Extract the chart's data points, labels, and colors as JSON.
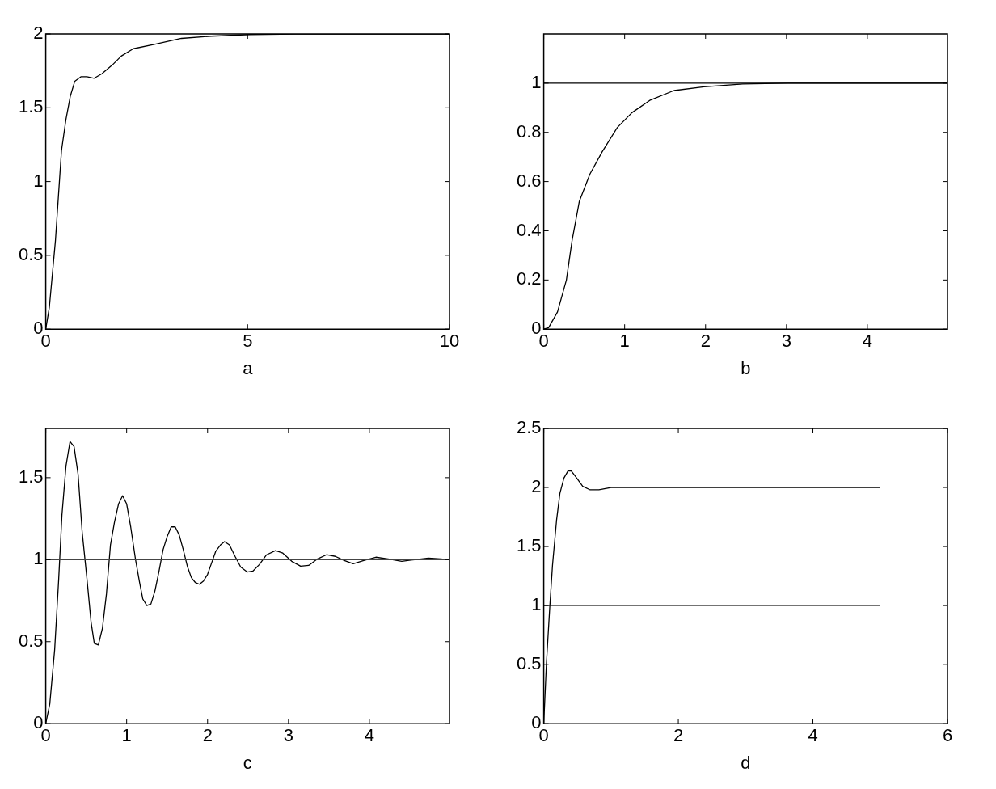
{
  "chart_data": [
    {
      "type": "line",
      "xlabel": "a",
      "xlim": [
        0,
        10
      ],
      "ylim": [
        0,
        2
      ],
      "xticks": [
        0,
        5,
        10
      ],
      "yticks": [
        0,
        0.5,
        1,
        1.5,
        2
      ],
      "series": [
        {
          "color": "#000000",
          "x": [
            0,
            0.09,
            0.24,
            0.39,
            0.5,
            0.61,
            0.72,
            0.87,
            1.02,
            1.2,
            1.39,
            1.65,
            1.87,
            2.17,
            2.69,
            3.36,
            4.1,
            5.06,
            6.2,
            10
          ],
          "values": [
            0,
            0.15,
            0.6,
            1.21,
            1.42,
            1.58,
            1.68,
            1.71,
            1.71,
            1.7,
            1.73,
            1.79,
            1.85,
            1.9,
            1.93,
            1.97,
            1.985,
            1.996,
            2,
            2
          ]
        }
      ]
    },
    {
      "type": "line",
      "xlabel": "b",
      "xlim": [
        0,
        4.99
      ],
      "ylim": [
        0,
        1.2
      ],
      "xticks": [
        0,
        1,
        2,
        3,
        4
      ],
      "yticks": [
        0,
        0.2,
        0.4,
        0.6,
        0.8,
        1
      ],
      "ref_lines": [
        {
          "axis": "y",
          "value": 1,
          "color": "#000000"
        }
      ],
      "series": [
        {
          "color": "#000000",
          "x": [
            0,
            0.06,
            0.17,
            0.28,
            0.35,
            0.44,
            0.57,
            0.72,
            0.91,
            1.09,
            1.31,
            1.61,
            1.98,
            2.46,
            3.02,
            4.99
          ],
          "values": [
            0,
            0.006,
            0.07,
            0.2,
            0.36,
            0.52,
            0.63,
            0.72,
            0.82,
            0.88,
            0.93,
            0.97,
            0.985,
            0.997,
            1,
            1
          ]
        }
      ]
    },
    {
      "type": "line",
      "xlabel": "c",
      "xlim": [
        0,
        4.99
      ],
      "ylim": [
        0,
        1.8
      ],
      "xticks": [
        0,
        1,
        2,
        3,
        4
      ],
      "yticks": [
        0,
        0.5,
        1,
        1.5
      ],
      "ref_lines": [
        {
          "axis": "y",
          "value": 1,
          "color": "#444444"
        }
      ],
      "series": [
        {
          "color": "#000000",
          "x": [
            0,
            0.05,
            0.11,
            0.16,
            0.2,
            0.25,
            0.3,
            0.35,
            0.4,
            0.45,
            0.51,
            0.56,
            0.6,
            0.65,
            0.7,
            0.75,
            0.8,
            0.85,
            0.9,
            0.95,
            1.0,
            1.05,
            1.11,
            1.16,
            1.2,
            1.25,
            1.3,
            1.35,
            1.4,
            1.45,
            1.5,
            1.55,
            1.6,
            1.65,
            1.7,
            1.75,
            1.8,
            1.85,
            1.9,
            1.95,
            2.0,
            2.05,
            2.1,
            2.16,
            2.21,
            2.27,
            2.34,
            2.41,
            2.49,
            2.56,
            2.64,
            2.73,
            2.84,
            2.93,
            3.04,
            3.15,
            3.25,
            3.36,
            3.47,
            3.58,
            3.69,
            3.8,
            3.93,
            4.08,
            4.23,
            4.4,
            4.56,
            4.73,
            4.88,
            4.99
          ],
          "values": [
            0,
            0.12,
            0.45,
            0.88,
            1.27,
            1.57,
            1.72,
            1.69,
            1.52,
            1.17,
            0.88,
            0.62,
            0.49,
            0.48,
            0.58,
            0.79,
            1.09,
            1.23,
            1.34,
            1.39,
            1.34,
            1.2,
            1.0,
            0.86,
            0.76,
            0.72,
            0.73,
            0.81,
            0.93,
            1.06,
            1.14,
            1.2,
            1.2,
            1.15,
            1.06,
            0.96,
            0.89,
            0.86,
            0.85,
            0.87,
            0.91,
            0.98,
            1.05,
            1.09,
            1.11,
            1.09,
            1.02,
            0.955,
            0.925,
            0.93,
            0.97,
            1.03,
            1.055,
            1.04,
            0.99,
            0.96,
            0.965,
            1.005,
            1.03,
            1.02,
            0.995,
            0.975,
            0.995,
            1.015,
            1.005,
            0.99,
            1.0,
            1.01,
            1.005,
            1.0
          ]
        }
      ]
    },
    {
      "type": "line",
      "xlabel": "d",
      "xlim": [
        0,
        6
      ],
      "ylim": [
        0,
        2.5
      ],
      "xticks": [
        0,
        2,
        4,
        6
      ],
      "yticks": [
        0,
        0.5,
        1,
        1.5,
        2,
        2.5
      ],
      "series": [
        {
          "color": "#000000",
          "x": [
            0,
            0.04,
            0.09,
            0.13,
            0.19,
            0.24,
            0.3,
            0.36,
            0.41,
            0.49,
            0.58,
            0.69,
            0.82,
            1.0,
            1.22,
            1.4,
            5
          ],
          "values": [
            0,
            0.51,
            0.99,
            1.34,
            1.72,
            1.95,
            2.08,
            2.14,
            2.14,
            2.08,
            2.01,
            1.98,
            1.98,
            2.0,
            2.0,
            2.0,
            2
          ]
        },
        {
          "color": "#444444",
          "x": [
            0,
            5
          ],
          "values": [
            1,
            1
          ]
        }
      ]
    }
  ]
}
